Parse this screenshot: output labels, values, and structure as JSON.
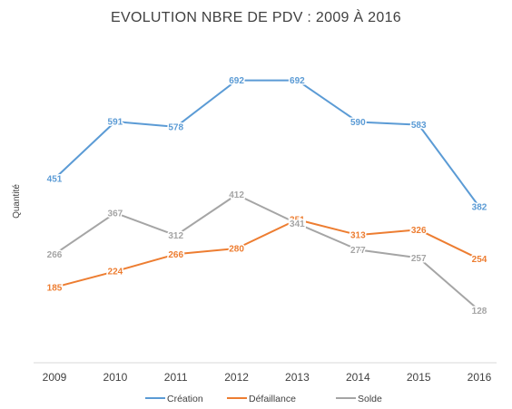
{
  "chart_data": {
    "type": "line",
    "title": "EVOLUTION NBRE DE PDV : 2009 À 2016",
    "xlabel": "",
    "ylabel": "Quantité",
    "categories": [
      "2009",
      "2010",
      "2011",
      "2012",
      "2013",
      "2014",
      "2015",
      "2016"
    ],
    "ylim": [
      0,
      800
    ],
    "grid": false,
    "legend_position": "bottom",
    "series": [
      {
        "name": "Création",
        "color": "#5B9BD5",
        "values": [
          451,
          591,
          578,
          692,
          692,
          590,
          583,
          382
        ]
      },
      {
        "name": "Défaillance",
        "color": "#ED7D31",
        "values": [
          185,
          224,
          266,
          280,
          351,
          313,
          326,
          254
        ]
      },
      {
        "name": "Solde",
        "color": "#A5A5A5",
        "values": [
          266,
          367,
          312,
          412,
          341,
          277,
          257,
          128
        ]
      }
    ]
  }
}
